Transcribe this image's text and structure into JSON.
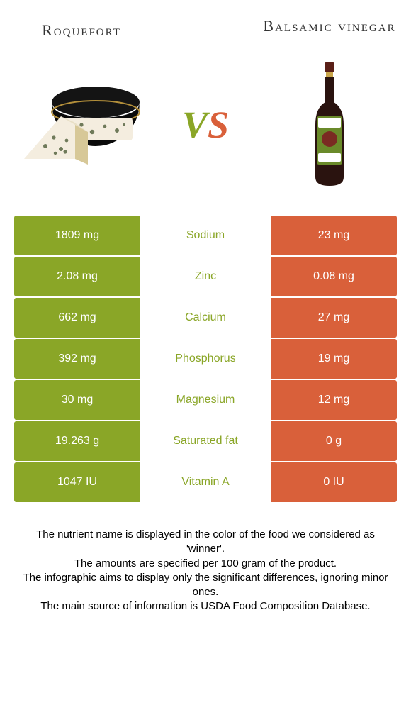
{
  "header": {
    "left_title": "Roquefort",
    "right_title": "Balsamic vinegar",
    "vs_v": "V",
    "vs_s": "S"
  },
  "colors": {
    "left_green": "#8aa627",
    "right_coral": "#d9603a",
    "winner_text_green": "#8aa627",
    "winner_text_coral": "#d9603a",
    "bottle_dark": "#2a130f",
    "bottle_cap": "#5a1f17",
    "bottle_label": "#6a8a2a",
    "bottle_white": "#ffffff",
    "cheese_black": "#141414",
    "cheese_cream": "#f4eddf",
    "cheese_rind": "#d7c898",
    "cheese_mold": "#6f7a5a"
  },
  "rows": [
    {
      "label": "Sodium",
      "left": "1809 mg",
      "right": "23 mg",
      "winner": "left"
    },
    {
      "label": "Zinc",
      "left": "2.08 mg",
      "right": "0.08 mg",
      "winner": "left"
    },
    {
      "label": "Calcium",
      "left": "662 mg",
      "right": "27 mg",
      "winner": "left"
    },
    {
      "label": "Phosphorus",
      "left": "392 mg",
      "right": "19 mg",
      "winner": "left"
    },
    {
      "label": "Magnesium",
      "left": "30 mg",
      "right": "12 mg",
      "winner": "left"
    },
    {
      "label": "Saturated fat",
      "left": "19.263 g",
      "right": "0 g",
      "winner": "left"
    },
    {
      "label": "Vitamin A",
      "left": "1047 IU",
      "right": "0 IU",
      "winner": "left"
    }
  ],
  "footer": {
    "line1": "The nutrient name is displayed in the color of the food we considered as 'winner'.",
    "line2": "The amounts are specified per 100 gram of the product.",
    "line3": "The infographic aims to display only the significant differences, ignoring minor ones.",
    "line4": "The main source of information is USDA Food Composition Database."
  }
}
